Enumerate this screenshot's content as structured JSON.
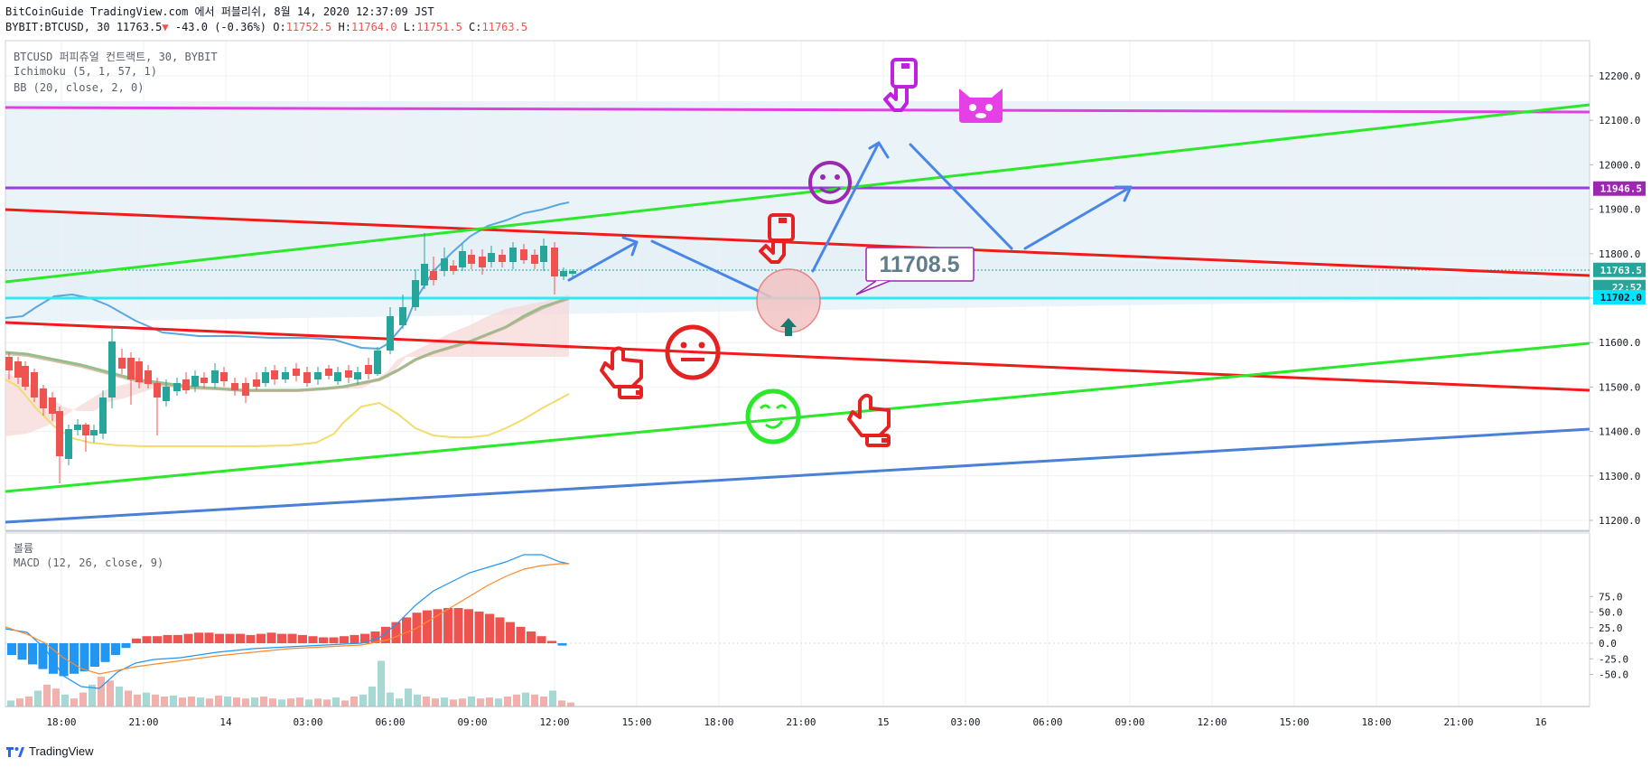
{
  "header": {
    "line1": "BitCoinGuide TradingView.com 에서 퍼블리쉬, 8월 14, 2020 12:37:09 JST",
    "symbol": "BYBIT:BTCUSD, 30 11763.5",
    "change": "-43.0 (-0.36%)",
    "o_label": "O:",
    "o_value": "11752.5",
    "h_label": "H:",
    "h_value": "11764.0",
    "l_label": "L:",
    "l_value": "11751.5",
    "c_label": "C:",
    "c_value": "11763.5",
    "down_icon": "triangle-down-icon"
  },
  "legend": {
    "main": "BTCUSD 퍼피츄얼 컨트랙트, 30, BYBIT",
    "ichimoku": "Ichimoku (5, 1, 57, 1)",
    "bb": "BB (20, close, 2, 0)",
    "volume": "볼륨",
    "macd": "MACD (12, 26, close, 9)"
  },
  "price_axis": [
    "12200.0",
    "12100.0",
    "12000.0",
    "11900.0",
    "11800.0",
    "11700.0",
    "11600.0",
    "11500.0",
    "11400.0",
    "11300.0",
    "11200.0"
  ],
  "price_badges": [
    {
      "label": "11946.5",
      "color": "#9c27b0"
    },
    {
      "label": "11763.5",
      "color": "#26a69a"
    },
    {
      "label": "22:52",
      "color": "#26a69a"
    },
    {
      "label": "11702.0",
      "color": "#00e5ff"
    }
  ],
  "macd_axis": [
    "75.0",
    "50.0",
    "25.0",
    "0.0",
    "-25.0",
    "-50.0"
  ],
  "time_axis": [
    "18:00",
    "21:00",
    "14",
    "03:00",
    "06:00",
    "09:00",
    "12:00",
    "15:00",
    "18:00",
    "21:00",
    "15",
    "03:00",
    "06:00",
    "09:00",
    "12:00",
    "15:00",
    "18:00",
    "21:00",
    "16"
  ],
  "annotation": {
    "callout_label": "11708.5",
    "callout_color": "#9c27b0"
  },
  "footer": {
    "brand": "TradingView",
    "logo_icon": "tradingview-logo-icon"
  },
  "colors": {
    "bull": "#26a69a",
    "bear": "#ef5350",
    "red_line": "#f21a1a",
    "green_line": "#2be82b",
    "blue_line": "#4a80d8",
    "magenta_line": "#e040e0",
    "purple_line": "#9c3dde",
    "cyan_line": "#33e6f0",
    "bb": "#5aa7e0",
    "kumo": "#f6d8d8",
    "grid": "#eef0f3"
  },
  "icons": [
    "pointing-down-hand-icon",
    "cat-face-icon",
    "smiley-icon",
    "pointing-down-hand-icon",
    "neutral-face-icon",
    "pointing-up-hand-icon",
    "dizzy-face-icon",
    "pointing-up-hand-icon",
    "arrow-up-icon"
  ]
}
